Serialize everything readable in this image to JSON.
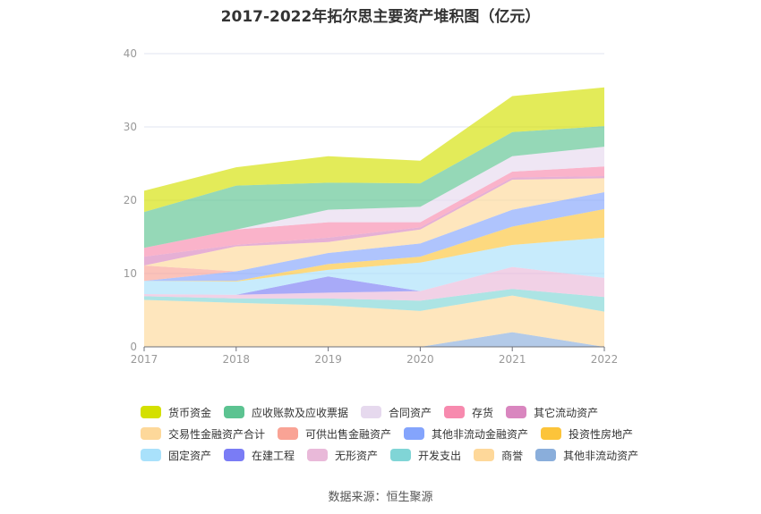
{
  "title": "2017-2022年拓尔思主要资产堆积图（亿元）",
  "source": "数据来源：恒生聚源",
  "chart_data": {
    "type": "area",
    "stacked": true,
    "title": "2017-2022年拓尔思主要资产堆积图（亿元）",
    "xlabel": "",
    "ylabel": "",
    "ylim": [
      0,
      40
    ],
    "yticks": [
      "0",
      "10",
      "20",
      "30",
      "40"
    ],
    "grid": true,
    "legend_position": "bottom",
    "categories": [
      "2017",
      "2018",
      "2019",
      "2020",
      "2021",
      "2022"
    ],
    "series": [
      {
        "name": "其他非流动资产",
        "color": "#8aaedb",
        "values": [
          0,
          0,
          0,
          0,
          2.0,
          0
        ]
      },
      {
        "name": "商誉",
        "color": "#fed89a",
        "values": [
          6.4,
          6.0,
          5.65,
          4.9,
          5.0,
          4.8
        ]
      },
      {
        "name": "开发支出",
        "color": "#80d5d6",
        "values": [
          0.5,
          0.6,
          0.95,
          1.4,
          0.9,
          2.0
        ]
      },
      {
        "name": "无形资产",
        "color": "#e9b9d9",
        "values": [
          0.3,
          0.5,
          0.8,
          1.3,
          3.0,
          2.6
        ]
      },
      {
        "name": "在建工程",
        "color": "#7a7cf5",
        "values": [
          0,
          0,
          2.2,
          0,
          0,
          0
        ]
      },
      {
        "name": "固定资产",
        "color": "#a9e1fb",
        "values": [
          1.8,
          1.8,
          0.9,
          3.9,
          3.0,
          5.5
        ]
      },
      {
        "name": "投资性房地产",
        "color": "#fcc43a",
        "values": [
          0,
          0.1,
          0.8,
          0.8,
          2.5,
          3.9
        ]
      },
      {
        "name": "其他非流动金融资产",
        "color": "#84a4fc",
        "values": [
          0,
          1.3,
          1.5,
          1.8,
          2.3,
          2.3
        ]
      },
      {
        "name": "可供出售金融资产",
        "color": "#f9a395",
        "values": [
          2.1,
          0,
          0,
          0,
          0,
          0
        ]
      },
      {
        "name": "交易性金融资产合计",
        "color": "#fdd89a",
        "values": [
          0,
          3.4,
          1.5,
          1.9,
          4.1,
          1.9
        ]
      },
      {
        "name": "其它流动资产",
        "color": "#d986bf",
        "values": [
          1.2,
          0.2,
          0.6,
          0.3,
          0.3,
          0.3
        ]
      },
      {
        "name": "存货",
        "color": "#f78aae",
        "values": [
          1.2,
          2.1,
          2.1,
          0.7,
          0.8,
          1.3
        ]
      },
      {
        "name": "合同资产",
        "color": "#e6d9ee",
        "values": [
          0,
          0,
          1.7,
          2.1,
          2.1,
          2.7
        ]
      },
      {
        "name": "应收账款及应收票据",
        "color": "#5cc391",
        "values": [
          4.9,
          6.0,
          3.7,
          3.2,
          3.3,
          2.8
        ]
      },
      {
        "name": "货币资金",
        "color": "#d4e000",
        "values": [
          2.9,
          2.5,
          3.6,
          3.1,
          4.9,
          5.3
        ]
      }
    ],
    "legend_order": [
      "货币资金",
      "应收账款及应收票据",
      "合同资产",
      "存货",
      "其它流动资产",
      "交易性金融资产合计",
      "可供出售金融资产",
      "其他非流动金融资产",
      "投资性房地产",
      "固定资产",
      "在建工程",
      "无形资产",
      "开发支出",
      "商誉",
      "其他非流动资产"
    ]
  }
}
